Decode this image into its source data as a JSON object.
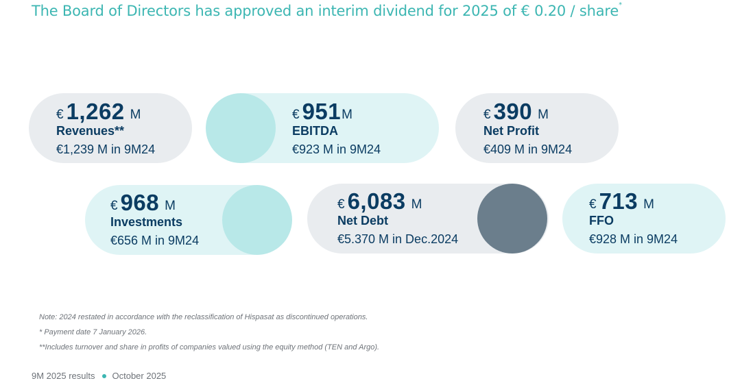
{
  "headline": {
    "text": "The Board of Directors has approved an interim dividend for 2025 of € 0.20 / share",
    "marker": "*"
  },
  "kpis": {
    "revenues": {
      "currency": "€",
      "value": "1,262",
      "unit": "M",
      "label": "Revenues**",
      "comparison": "€1,239 M in 9M24"
    },
    "ebitda": {
      "currency": "€",
      "value": "951",
      "unit": "M",
      "label": "EBITDA",
      "comparison": "€923 M in 9M24"
    },
    "net_profit": {
      "currency": "€",
      "value": "390",
      "unit": "M",
      "label": "Net Profit",
      "comparison": "€409 M in 9M24"
    },
    "investments": {
      "currency": "€",
      "value": "968",
      "unit": "M",
      "label": "Investments",
      "comparison": "€656 M in 9M24"
    },
    "net_debt": {
      "currency": "€",
      "value": "6,083",
      "unit": "M",
      "label": "Net Debt",
      "comparison": "€5.370 M in Dec.2024"
    },
    "ffo": {
      "currency": "€",
      "value": "713",
      "unit": "M",
      "label": "FFO",
      "comparison": "€928 M in 9M24"
    }
  },
  "notes": {
    "restated": "Note: 2024 restated in accordance with the reclassification of Hispasat as discontinued operations.",
    "payment": "* Payment date 7 January 2026.",
    "turnover": "**Includes turnover and share in profits of companies valued using the equity method (TEN and Argo)."
  },
  "footer": {
    "period": "9M 2025 results",
    "date": "October 2025"
  },
  "colors": {
    "headline": "#3cb6b2",
    "kpi_text": "#0b3c62",
    "pill_gray": "#e9ecef",
    "pill_teal": "#dff4f5",
    "circle_teal": "#b8e8e8",
    "circle_slate": "#6b7e8c"
  }
}
